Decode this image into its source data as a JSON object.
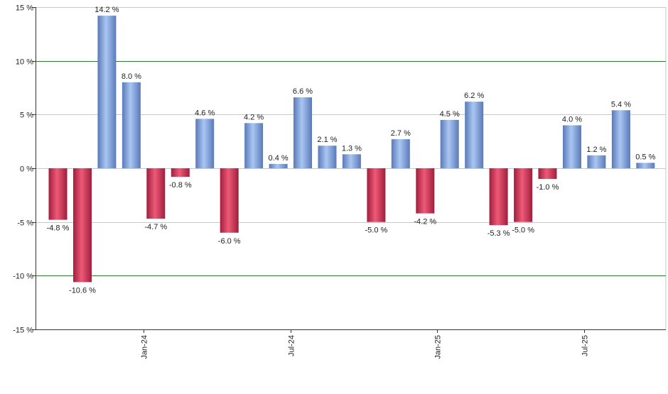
{
  "chart_data": {
    "type": "bar",
    "title": "",
    "xlabel": "",
    "ylabel": "",
    "ylim": [
      -15,
      15
    ],
    "y_ticks": [
      15,
      10,
      5,
      0,
      -5,
      -10,
      -15
    ],
    "y_tick_labels": [
      "15 %",
      "10 %",
      "5 %",
      "0 %",
      "-5 %",
      "-10 %",
      "-15 %"
    ],
    "emphasized_gridlines": [
      10,
      -10
    ],
    "x_tick_labels": [
      {
        "label": "Jan-24",
        "after_bar": 3
      },
      {
        "label": "Jul-24",
        "after_bar": 9
      },
      {
        "label": "Jan-25",
        "after_bar": 15
      },
      {
        "label": "Jul-25",
        "after_bar": 21
      }
    ],
    "values": [
      -4.8,
      -10.6,
      14.2,
      8.0,
      -4.7,
      -0.8,
      4.6,
      -6.0,
      4.2,
      0.4,
      6.6,
      2.1,
      1.3,
      -5.0,
      2.7,
      -4.2,
      4.5,
      6.2,
      -5.3,
      -5.0,
      -1.0,
      4.0,
      1.2,
      5.4,
      0.5
    ],
    "value_labels": [
      "-4.8 %",
      "-10.6 %",
      "14.2 %",
      "8.0 %",
      "-4.7 %",
      "-0.8 %",
      "4.6 %",
      "-6.0 %",
      "4.2 %",
      "0.4 %",
      "6.6 %",
      "2.1 %",
      "1.3 %",
      "-5.0 %",
      "2.7 %",
      "-4.2 %",
      "4.5 %",
      "6.2 %",
      "-5.3 %",
      "-5.0 %",
      "-1.0 %",
      "4.0 %",
      "1.2 %",
      "5.4 %",
      "0.5 %"
    ],
    "colors": {
      "positive_dark": "#5a7ab8",
      "positive_light": "#a9c6f2",
      "negative_dark": "#a01e3c",
      "negative_light": "#ee5a78",
      "grid": "#c8c8c8",
      "grid_emphasis": "#2e7d32",
      "axis": "#333333"
    }
  }
}
